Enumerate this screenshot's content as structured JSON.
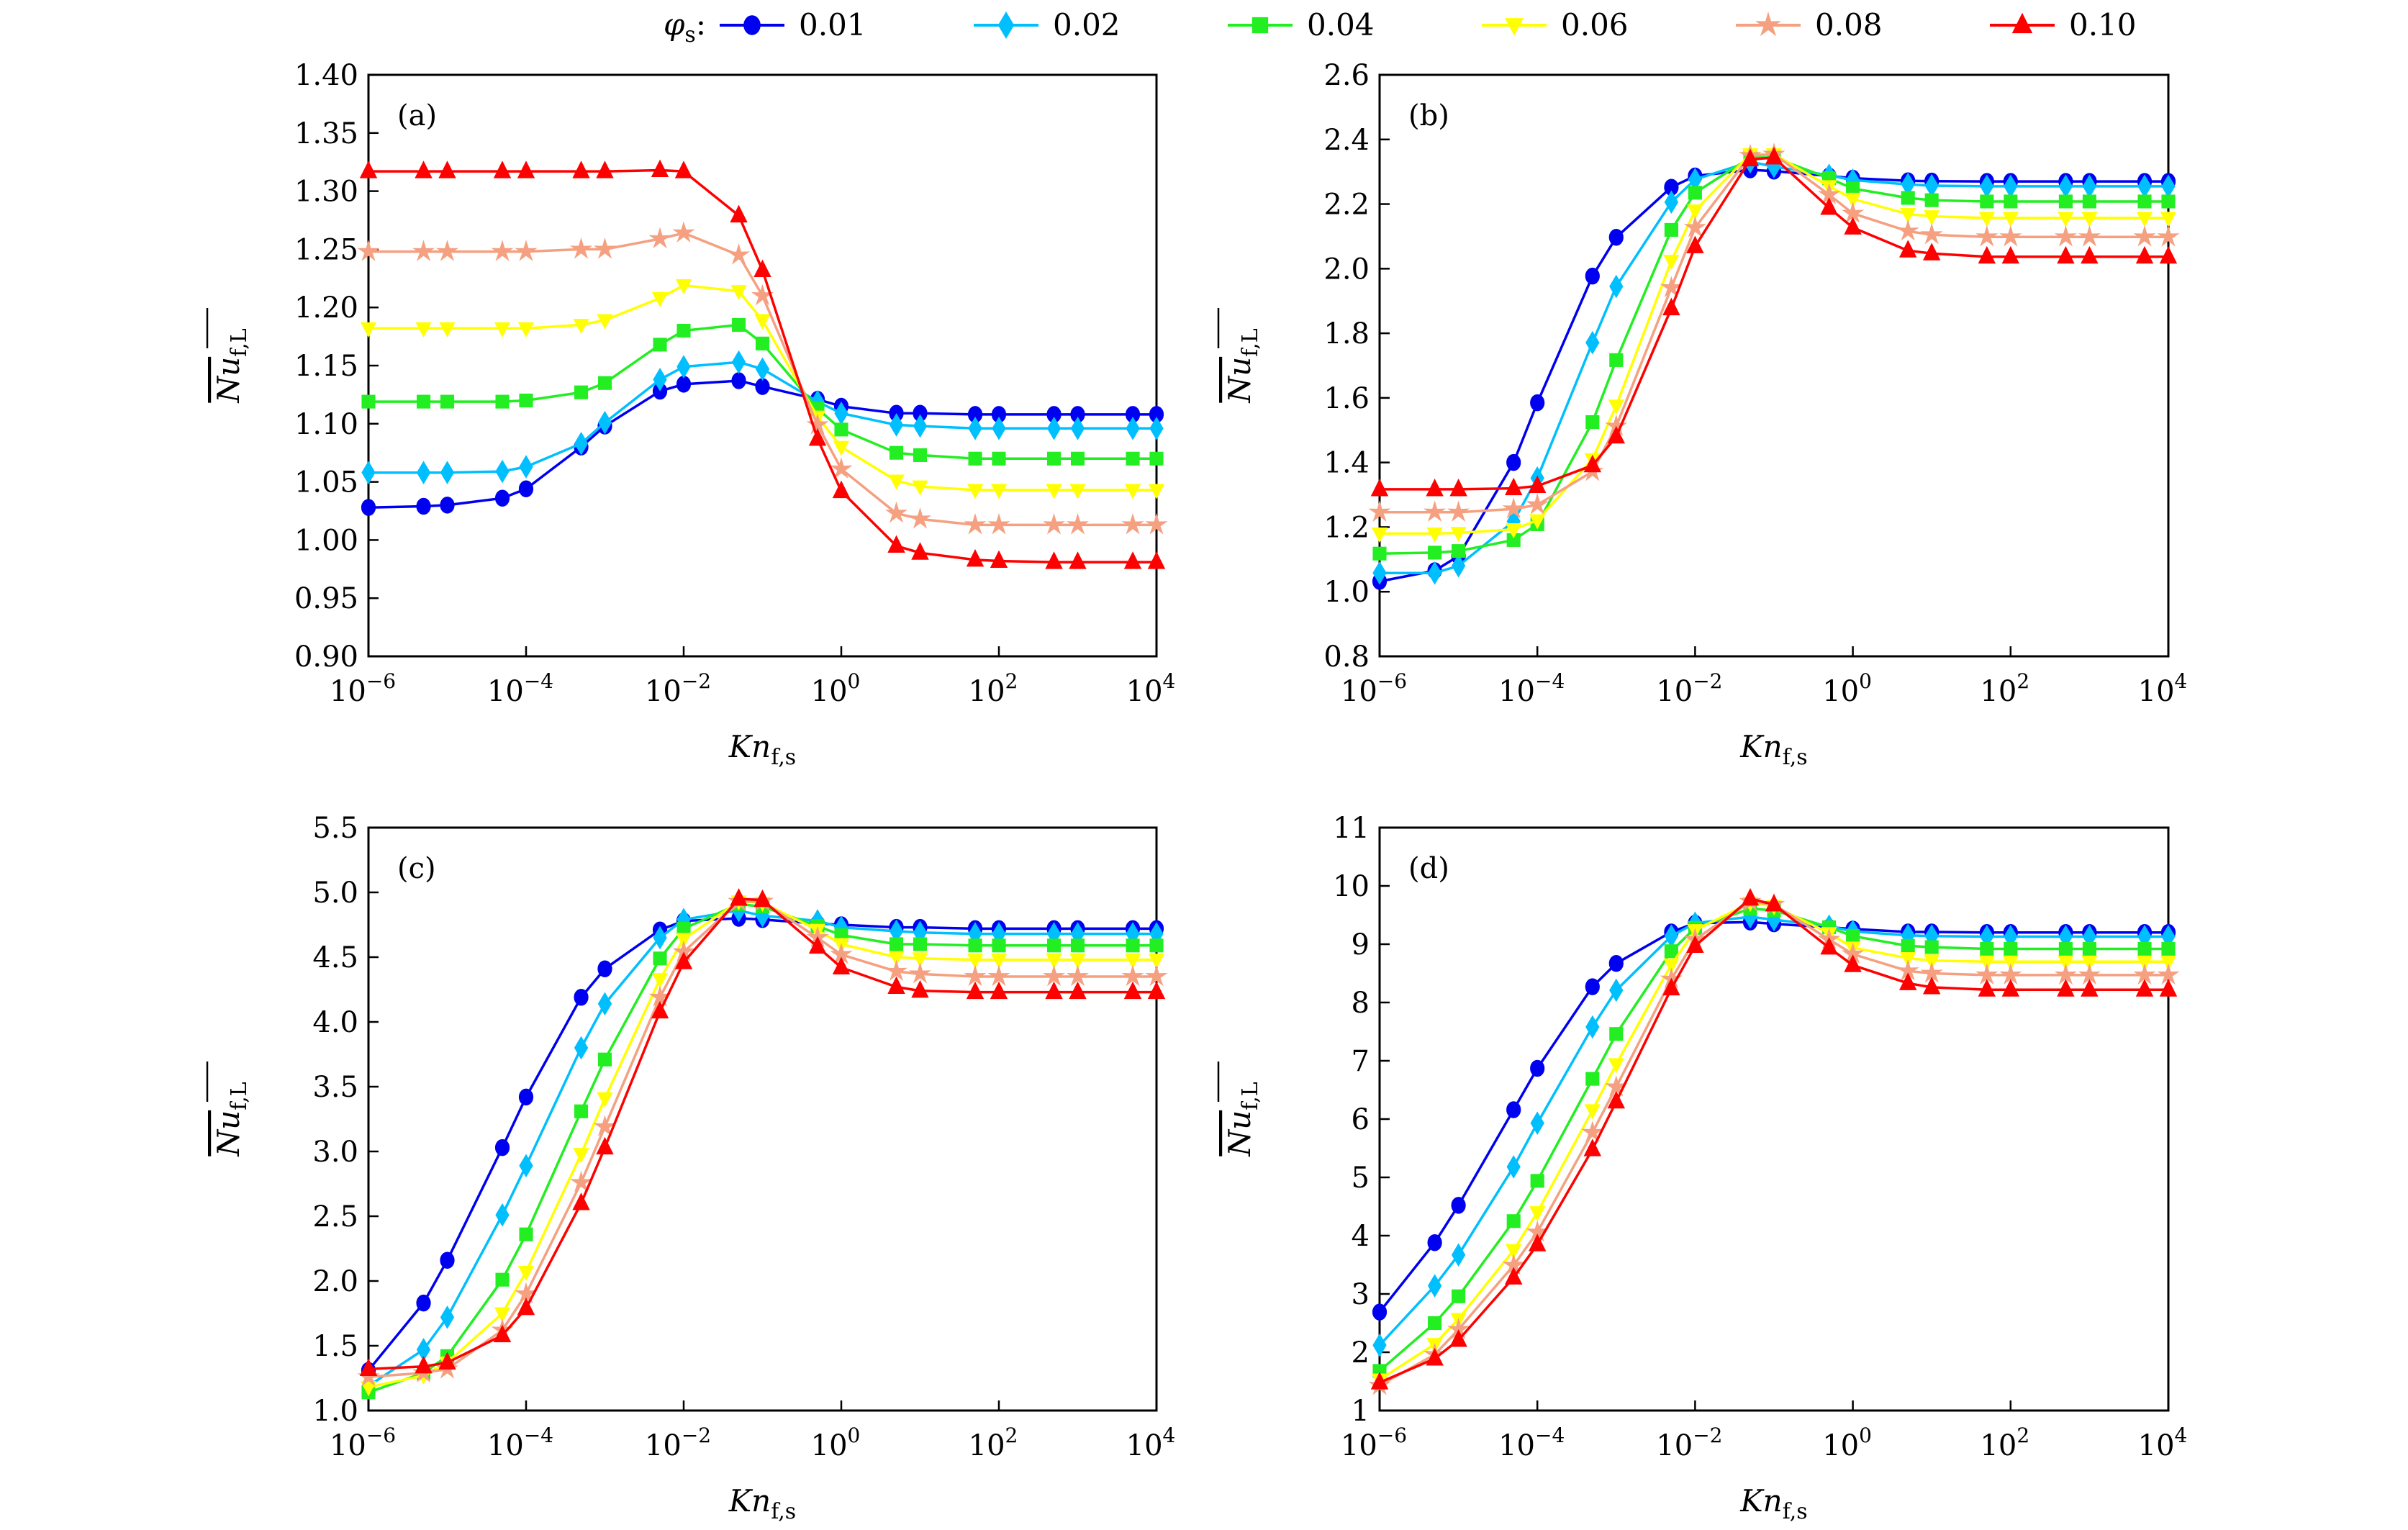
{
  "legend": {
    "symbol": "φ",
    "symbol_sub": "s",
    "suffix": ":",
    "location": "top-center, outside"
  },
  "styles": [
    {
      "name": "0.01",
      "color": "#0000f0",
      "marker": "circle"
    },
    {
      "name": "0.02",
      "color": "#00bfff",
      "marker": "diamond"
    },
    {
      "name": "0.04",
      "color": "#22ee22",
      "marker": "square"
    },
    {
      "name": "0.06",
      "color": "#ffff00",
      "marker": "triangle-down"
    },
    {
      "name": "0.08",
      "color": "#f5a080",
      "marker": "star"
    },
    {
      "name": "0.10",
      "color": "#ff0000",
      "marker": "triangle-up"
    }
  ],
  "chart_data": [
    {
      "type": "line",
      "panel_label": "(a)",
      "xlabel": "Kn",
      "xlabel_sub": "f,s",
      "ylabel": "Nu",
      "ylabel_sub": "f,L",
      "ylabel_overline": true,
      "xscale": "log",
      "xlim": [
        1e-06,
        10000.0
      ],
      "xtick_exponents": [
        "−6",
        "−4",
        "−2",
        "0",
        "2",
        "4"
      ],
      "xtick_base": "10",
      "ylim": [
        0.9,
        1.4
      ],
      "yticks": [
        "0.90",
        "0.95",
        "1.00",
        "1.05",
        "1.10",
        "1.15",
        "1.20",
        "1.25",
        "1.30",
        "1.35",
        "1.40"
      ],
      "grid": false,
      "x": [
        1e-06,
        5e-06,
        1e-05,
        5e-05,
        0.0001,
        0.0005,
        0.001,
        0.005,
        0.01,
        0.05,
        0.1,
        0.5,
        1,
        5,
        10,
        50,
        100,
        500,
        1000,
        5000,
        10000
      ],
      "series": [
        {
          "name": "0.01",
          "values": [
            1.028,
            1.029,
            1.03,
            1.036,
            1.044,
            1.08,
            1.098,
            1.128,
            1.134,
            1.137,
            1.132,
            1.121,
            1.115,
            1.109,
            1.109,
            1.108,
            1.108,
            1.108,
            1.108,
            1.108,
            1.108
          ]
        },
        {
          "name": "0.02",
          "values": [
            1.058,
            1.058,
            1.058,
            1.059,
            1.063,
            1.083,
            1.101,
            1.138,
            1.149,
            1.153,
            1.147,
            1.119,
            1.109,
            1.099,
            1.098,
            1.096,
            1.096,
            1.096,
            1.096,
            1.096,
            1.096
          ]
        },
        {
          "name": "0.04",
          "values": [
            1.119,
            1.119,
            1.119,
            1.119,
            1.12,
            1.127,
            1.135,
            1.168,
            1.18,
            1.185,
            1.169,
            1.113,
            1.095,
            1.075,
            1.073,
            1.07,
            1.07,
            1.07,
            1.07,
            1.07,
            1.07
          ]
        },
        {
          "name": "0.06",
          "values": [
            1.182,
            1.182,
            1.182,
            1.182,
            1.182,
            1.185,
            1.189,
            1.208,
            1.219,
            1.214,
            1.189,
            1.106,
            1.08,
            1.051,
            1.046,
            1.043,
            1.043,
            1.043,
            1.043,
            1.043,
            1.043
          ]
        },
        {
          "name": "0.08",
          "values": [
            1.248,
            1.248,
            1.248,
            1.248,
            1.248,
            1.25,
            1.25,
            1.259,
            1.264,
            1.245,
            1.21,
            1.099,
            1.061,
            1.023,
            1.018,
            1.013,
            1.013,
            1.013,
            1.013,
            1.013,
            1.013
          ]
        },
        {
          "name": "0.10",
          "values": [
            1.317,
            1.317,
            1.317,
            1.317,
            1.317,
            1.317,
            1.317,
            1.318,
            1.317,
            1.279,
            1.232,
            1.087,
            1.042,
            0.995,
            0.989,
            0.983,
            0.982,
            0.981,
            0.981,
            0.981,
            0.981
          ]
        }
      ]
    },
    {
      "type": "line",
      "panel_label": "(b)",
      "xlabel": "Kn",
      "xlabel_sub": "f,s",
      "ylabel": "Nu",
      "ylabel_sub": "f,L",
      "ylabel_overline": true,
      "xscale": "log",
      "xlim": [
        1e-06,
        10000.0
      ],
      "xtick_exponents": [
        "−6",
        "−4",
        "−2",
        "0",
        "2",
        "4"
      ],
      "xtick_base": "10",
      "ylim": [
        0.8,
        2.6
      ],
      "yticks": [
        "0.8",
        "1.0",
        "1.2",
        "1.4",
        "1.6",
        "1.8",
        "2.0",
        "2.2",
        "2.4",
        "2.6"
      ],
      "grid": false,
      "x": [
        1e-06,
        5e-06,
        1e-05,
        5e-05,
        0.0001,
        0.0005,
        0.001,
        0.005,
        0.01,
        0.05,
        0.1,
        0.5,
        1,
        5,
        10,
        50,
        100,
        500,
        1000,
        5000,
        10000
      ],
      "series": [
        {
          "name": "0.01",
          "values": [
            1.032,
            1.065,
            1.11,
            1.4,
            1.585,
            1.977,
            2.097,
            2.252,
            2.287,
            2.306,
            2.302,
            2.287,
            2.28,
            2.272,
            2.271,
            2.27,
            2.27,
            2.27,
            2.27,
            2.27,
            2.27
          ]
        },
        {
          "name": "0.02",
          "values": [
            1.058,
            1.058,
            1.08,
            1.218,
            1.352,
            1.771,
            1.945,
            2.206,
            2.276,
            2.331,
            2.316,
            2.289,
            2.274,
            2.261,
            2.257,
            2.255,
            2.255,
            2.255,
            2.255,
            2.255,
            2.255
          ]
        },
        {
          "name": "0.04",
          "values": [
            1.118,
            1.121,
            1.126,
            1.16,
            1.209,
            1.525,
            1.717,
            2.12,
            2.235,
            2.344,
            2.344,
            2.28,
            2.248,
            2.219,
            2.212,
            2.208,
            2.208,
            2.208,
            2.208,
            2.208,
            2.208
          ]
        },
        {
          "name": "0.06",
          "values": [
            1.18,
            1.18,
            1.182,
            1.193,
            1.221,
            1.41,
            1.576,
            2.024,
            2.18,
            2.354,
            2.354,
            2.255,
            2.216,
            2.169,
            2.162,
            2.157,
            2.157,
            2.157,
            2.157,
            2.157,
            2.157
          ]
        },
        {
          "name": "0.08",
          "values": [
            1.246,
            1.246,
            1.246,
            1.256,
            1.269,
            1.372,
            1.512,
            1.941,
            2.127,
            2.35,
            2.354,
            2.229,
            2.171,
            2.116,
            2.105,
            2.098,
            2.098,
            2.098,
            2.098,
            2.098,
            2.098
          ]
        },
        {
          "name": "0.10",
          "values": [
            1.317,
            1.317,
            1.317,
            1.32,
            1.327,
            1.391,
            1.48,
            1.877,
            2.069,
            2.338,
            2.344,
            2.188,
            2.127,
            2.056,
            2.047,
            2.037,
            2.037,
            2.037,
            2.037,
            2.037,
            2.037
          ]
        }
      ]
    },
    {
      "type": "line",
      "panel_label": "(c)",
      "xlabel": "Kn",
      "xlabel_sub": "f,s",
      "ylabel": "Nu",
      "ylabel_sub": "f,L",
      "ylabel_overline": true,
      "xscale": "log",
      "xlim": [
        1e-06,
        10000.0
      ],
      "xtick_exponents": [
        "−6",
        "−4",
        "−2",
        "0",
        "2",
        "4"
      ],
      "xtick_base": "10",
      "ylim": [
        1.0,
        5.5
      ],
      "yticks": [
        "1.0",
        "1.5",
        "2.0",
        "2.5",
        "3.0",
        "3.5",
        "4.0",
        "4.5",
        "5.0",
        "5.5"
      ],
      "grid": false,
      "x": [
        1e-06,
        5e-06,
        1e-05,
        5e-05,
        0.0001,
        0.0005,
        0.001,
        0.005,
        0.01,
        0.05,
        0.1,
        0.5,
        1,
        5,
        10,
        50,
        100,
        500,
        1000,
        5000,
        10000
      ],
      "series": [
        {
          "name": "0.01",
          "values": [
            1.31,
            1.83,
            2.16,
            3.03,
            3.42,
            4.19,
            4.41,
            4.71,
            4.78,
            4.8,
            4.79,
            4.76,
            4.75,
            4.73,
            4.73,
            4.72,
            4.72,
            4.72,
            4.72,
            4.72,
            4.72
          ]
        },
        {
          "name": "0.02",
          "values": [
            1.19,
            1.47,
            1.72,
            2.51,
            2.89,
            3.8,
            4.14,
            4.65,
            4.79,
            4.86,
            4.82,
            4.78,
            4.73,
            4.7,
            4.69,
            4.68,
            4.68,
            4.68,
            4.68,
            4.68,
            4.68
          ]
        },
        {
          "name": "0.04",
          "values": [
            1.14,
            1.29,
            1.42,
            2.01,
            2.36,
            3.31,
            3.71,
            4.49,
            4.72,
            4.91,
            4.89,
            4.74,
            4.67,
            4.6,
            4.6,
            4.59,
            4.59,
            4.59,
            4.59,
            4.59,
            4.59
          ]
        },
        {
          "name": "0.06",
          "values": [
            1.18,
            1.27,
            1.37,
            1.75,
            2.07,
            2.98,
            3.41,
            4.33,
            4.64,
            4.93,
            4.92,
            4.71,
            4.6,
            4.5,
            4.49,
            4.48,
            4.48,
            4.48,
            4.48,
            4.48,
            4.48
          ]
        },
        {
          "name": "0.08",
          "values": [
            1.26,
            1.29,
            1.32,
            1.62,
            1.9,
            2.76,
            3.19,
            4.19,
            4.54,
            4.93,
            4.93,
            4.65,
            4.52,
            4.39,
            4.37,
            4.35,
            4.35,
            4.35,
            4.35,
            4.35,
            4.35
          ]
        },
        {
          "name": "0.10",
          "values": [
            1.32,
            1.34,
            1.37,
            1.58,
            1.79,
            2.6,
            3.03,
            4.08,
            4.46,
            4.95,
            4.94,
            4.58,
            4.42,
            4.27,
            4.24,
            4.23,
            4.23,
            4.23,
            4.23,
            4.23,
            4.23
          ]
        }
      ]
    },
    {
      "type": "line",
      "panel_label": "(d)",
      "xlabel": "Kn",
      "xlabel_sub": "f,s",
      "ylabel": "Nu",
      "ylabel_sub": "f,L",
      "ylabel_overline": true,
      "xscale": "log",
      "xlim": [
        1e-06,
        10000.0
      ],
      "xtick_exponents": [
        "−6",
        "−4",
        "−2",
        "0",
        "2",
        "4"
      ],
      "xtick_base": "10",
      "ylim": [
        1,
        11
      ],
      "yticks": [
        "1",
        "2",
        "3",
        "4",
        "5",
        "6",
        "7",
        "8",
        "9",
        "10",
        "11"
      ],
      "grid": false,
      "x": [
        1e-06,
        5e-06,
        1e-05,
        5e-05,
        0.0001,
        0.0005,
        0.001,
        0.005,
        0.01,
        0.05,
        0.1,
        0.5,
        1,
        5,
        10,
        50,
        100,
        500,
        1000,
        5000,
        10000
      ],
      "series": [
        {
          "name": "0.01",
          "values": [
            2.69,
            3.88,
            4.52,
            6.16,
            6.87,
            8.27,
            8.67,
            9.21,
            9.36,
            9.38,
            9.35,
            9.29,
            9.26,
            9.21,
            9.21,
            9.2,
            9.2,
            9.2,
            9.2,
            9.2,
            9.2
          ]
        },
        {
          "name": "0.02",
          "values": [
            2.12,
            3.14,
            3.67,
            5.18,
            5.93,
            7.58,
            8.21,
            9.14,
            9.36,
            9.47,
            9.42,
            9.31,
            9.22,
            9.15,
            9.14,
            9.13,
            9.13,
            9.13,
            9.13,
            9.13,
            9.13
          ]
        },
        {
          "name": "0.04",
          "values": [
            1.68,
            2.5,
            2.96,
            4.25,
            4.94,
            6.69,
            7.46,
            8.88,
            9.28,
            9.61,
            9.58,
            9.29,
            9.14,
            8.97,
            8.95,
            8.92,
            8.92,
            8.92,
            8.92,
            8.92,
            8.92
          ]
        },
        {
          "name": "0.06",
          "values": [
            1.53,
            2.14,
            2.57,
            3.75,
            4.4,
            6.15,
            6.94,
            8.65,
            9.24,
            9.71,
            9.65,
            9.19,
            8.94,
            8.76,
            8.72,
            8.7,
            8.7,
            8.7,
            8.7,
            8.7,
            8.7
          ]
        },
        {
          "name": "0.08",
          "values": [
            1.43,
            1.96,
            2.39,
            3.49,
            4.06,
            5.77,
            6.55,
            8.4,
            9.08,
            9.73,
            9.68,
            9.08,
            8.83,
            8.54,
            8.5,
            8.47,
            8.47,
            8.47,
            8.47,
            8.47,
            8.47
          ]
        },
        {
          "name": "0.10",
          "values": [
            1.48,
            1.89,
            2.21,
            3.28,
            3.85,
            5.48,
            6.3,
            8.24,
            8.97,
            9.78,
            9.68,
            8.94,
            8.64,
            8.33,
            8.26,
            8.22,
            8.22,
            8.22,
            8.22,
            8.22,
            8.22
          ]
        }
      ]
    }
  ]
}
